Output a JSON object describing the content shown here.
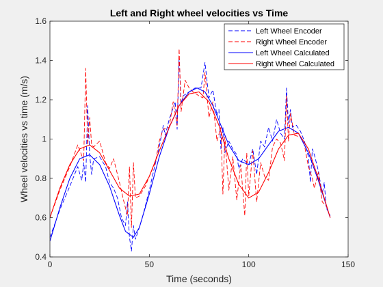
{
  "chart_data": {
    "type": "line",
    "title": "Left and Right wheel velocities vs Time",
    "xlabel": "Time (seconds)",
    "ylabel": "Wheel velocities vs time (m/s)",
    "xlim": [
      0,
      150
    ],
    "ylim": [
      0.4,
      1.6
    ],
    "xticks": [
      "0",
      "50",
      "100",
      "150"
    ],
    "yticks": [
      "0.4",
      "0.6",
      "0.8",
      "1",
      "1.2",
      "1.4",
      "1.6"
    ],
    "grid": false,
    "legend_position": "top-right",
    "series": [
      {
        "name": "Left Wheel Encoder",
        "color": "#0000ff",
        "style": "dashed",
        "x": [
          0,
          5,
          10,
          14,
          16,
          17,
          18,
          19,
          20,
          21,
          22,
          25,
          28,
          30,
          32,
          34,
          36,
          38,
          39,
          40,
          41,
          42,
          43,
          45,
          47,
          50,
          52,
          55,
          57,
          58,
          60,
          63,
          64,
          65,
          66,
          67,
          70,
          73,
          76,
          78,
          80,
          82,
          84,
          85,
          86,
          87,
          88,
          90,
          92,
          94,
          95,
          97,
          100,
          102,
          104,
          106,
          108,
          110,
          112,
          114,
          116,
          118,
          119,
          120,
          121,
          122,
          124,
          126,
          128,
          130,
          131,
          132,
          133,
          135,
          137,
          138,
          139,
          141
        ],
        "y": [
          0.5,
          0.64,
          0.76,
          0.86,
          0.79,
          0.88,
          0.78,
          1.17,
          0.92,
          0.82,
          0.9,
          0.91,
          0.86,
          0.78,
          0.75,
          0.7,
          0.6,
          0.56,
          0.68,
          0.5,
          0.43,
          0.56,
          0.49,
          0.55,
          0.62,
          0.74,
          0.83,
          0.96,
          1.07,
          1.02,
          1.1,
          1.19,
          1.05,
          1.42,
          1.18,
          1.22,
          1.24,
          1.26,
          1.26,
          1.39,
          1.21,
          1.25,
          1.12,
          1.15,
          0.95,
          1.06,
          0.93,
          0.99,
          0.95,
          0.92,
          0.85,
          0.9,
          0.87,
          0.95,
          0.82,
          0.99,
          0.96,
          1.06,
          0.99,
          1.1,
          1.03,
          1.0,
          1.26,
          1.08,
          1.15,
          1.06,
          1.07,
          1.04,
          0.99,
          0.91,
          0.78,
          0.95,
          0.92,
          0.84,
          0.72,
          0.78,
          0.65,
          0.61
        ]
      },
      {
        "name": "Right Wheel Encoder",
        "color": "#ff0000",
        "style": "dashed",
        "x": [
          0,
          5,
          10,
          14,
          17,
          18,
          19,
          20,
          21,
          22,
          25,
          28,
          30,
          32,
          35,
          37,
          39,
          40,
          41,
          42,
          43,
          45,
          48,
          50,
          53,
          55,
          57,
          60,
          62,
          64,
          65,
          66,
          68,
          70,
          72,
          75,
          77,
          78,
          80,
          82,
          84,
          86,
          87,
          88,
          90,
          92,
          94,
          96,
          98,
          99,
          100,
          102,
          104,
          106,
          108,
          110,
          112,
          114,
          116,
          118,
          119,
          120,
          121,
          123,
          126,
          128,
          130,
          132,
          133,
          135,
          137,
          139,
          141
        ],
        "y": [
          0.6,
          0.74,
          0.86,
          0.97,
          0.89,
          1.36,
          0.97,
          1.11,
          0.97,
          0.96,
          0.99,
          0.88,
          0.85,
          0.9,
          0.78,
          0.69,
          0.61,
          0.86,
          0.55,
          0.88,
          0.7,
          0.71,
          0.76,
          0.81,
          0.88,
          0.99,
          1.05,
          1.06,
          1.19,
          1.07,
          1.46,
          1.14,
          1.3,
          1.26,
          1.24,
          1.22,
          1.21,
          1.34,
          1.11,
          1.19,
          0.99,
          1.06,
          0.72,
          1.01,
          0.74,
          0.91,
          0.69,
          0.87,
          0.61,
          0.93,
          0.71,
          0.94,
          0.68,
          0.88,
          0.81,
          0.79,
          0.96,
          1.0,
          0.98,
          0.89,
          1.22,
          0.99,
          1.13,
          1.02,
          1.01,
          0.97,
          0.86,
          0.8,
          0.75,
          0.83,
          0.68,
          0.66,
          0.6
        ]
      },
      {
        "name": "Left Wheel Calculated",
        "color": "#0000ff",
        "style": "solid",
        "x": [
          0,
          5,
          10,
          15,
          20,
          25,
          30,
          35,
          38,
          42,
          45,
          50,
          55,
          60,
          65,
          70,
          74,
          78,
          82,
          86,
          90,
          95,
          100,
          105,
          110,
          115,
          120,
          125,
          130,
          135,
          141
        ],
        "y": [
          0.48,
          0.65,
          0.8,
          0.9,
          0.92,
          0.87,
          0.76,
          0.61,
          0.53,
          0.5,
          0.55,
          0.72,
          0.91,
          1.06,
          1.17,
          1.24,
          1.26,
          1.24,
          1.17,
          1.07,
          0.97,
          0.89,
          0.87,
          0.9,
          0.97,
          1.04,
          1.06,
          1.03,
          0.93,
          0.79,
          0.6
        ]
      },
      {
        "name": "Right Wheel Calculated",
        "color": "#ff0000",
        "style": "solid",
        "x": [
          0,
          5,
          10,
          15,
          20,
          25,
          30,
          35,
          40,
          45,
          50,
          55,
          60,
          65,
          70,
          75,
          80,
          85,
          90,
          95,
          100,
          105,
          110,
          115,
          120,
          125,
          130,
          135,
          141
        ],
        "y": [
          0.6,
          0.75,
          0.87,
          0.95,
          0.97,
          0.93,
          0.84,
          0.75,
          0.71,
          0.72,
          0.81,
          0.94,
          1.06,
          1.17,
          1.23,
          1.24,
          1.19,
          1.07,
          0.9,
          0.77,
          0.7,
          0.73,
          0.83,
          0.95,
          1.02,
          1.03,
          0.95,
          0.8,
          0.6
        ]
      }
    ]
  }
}
